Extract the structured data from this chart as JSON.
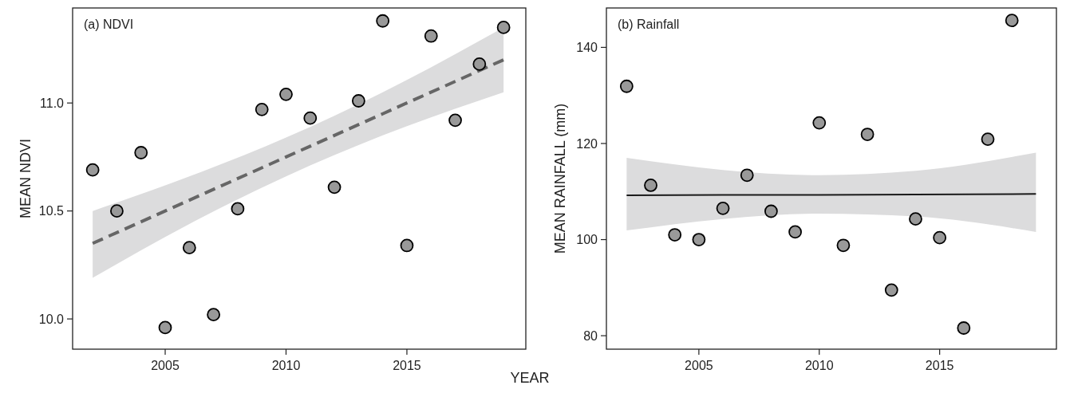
{
  "chart_data": [
    {
      "type": "scatter",
      "title": "(a) NDVI",
      "xlabel": "YEAR",
      "ylabel": "MEAN NDVI",
      "xlim": [
        2001.17,
        2019.92
      ],
      "xticks": [
        2005,
        2010,
        2015
      ],
      "ylim": [
        9.86,
        11.44
      ],
      "yticks": [
        {
          "value": 10.0,
          "label": "10.0"
        },
        10.5,
        {
          "value": 11.0,
          "label": "11.0"
        }
      ],
      "x": [
        2002,
        2003,
        2004,
        2005,
        2006,
        2007,
        2008,
        2009,
        2010,
        2011,
        2012,
        2013,
        2014,
        2015,
        2016,
        2017,
        2018,
        2019
      ],
      "series": [
        {
          "type": "line",
          "color": "#666666",
          "line_style": "dashed",
          "marker": "none",
          "x": [
            2002,
            2006,
            2010,
            2014,
            2019
          ],
          "values": [
            10.35,
            10.55,
            10.75,
            10.95,
            11.2
          ],
          "lower": [
            10.19,
            10.44,
            10.66,
            10.85,
            11.05
          ],
          "upper": [
            10.5,
            10.66,
            10.84,
            11.05,
            11.35
          ]
        },
        {
          "color": "#999999",
          "marker": "circle",
          "values": [
            10.69,
            10.5,
            10.77,
            9.96,
            10.33,
            10.02,
            10.51,
            10.97,
            11.04,
            10.93,
            10.61,
            11.01,
            11.38,
            10.34,
            11.31,
            10.92,
            11.18,
            11.35
          ]
        }
      ]
    },
    {
      "type": "scatter",
      "title": "(b) Rainfall",
      "ylabel": "MEAN RAINFALL (mm)",
      "xlim": [
        2001.16,
        2019.85
      ],
      "xticks": [
        2005,
        2010,
        2015
      ],
      "ylim": [
        77.2,
        148.2
      ],
      "yticks": [
        80,
        100,
        120,
        140
      ],
      "x": [
        2002,
        2003,
        2004,
        2005,
        2006,
        2007,
        2008,
        2009,
        2010,
        2011,
        2012,
        2013,
        2014,
        2015,
        2016,
        2017,
        2018
      ],
      "series": [
        {
          "type": "line",
          "color": "#1a1a1a",
          "line_style": "solid",
          "marker": "none",
          "x": [
            2002,
            2006,
            2010,
            2014,
            2019
          ],
          "values": [
            109.2,
            109.3,
            109.3,
            109.4,
            109.5
          ],
          "lower": [
            101.9,
            104.3,
            105.4,
            104.8,
            101.6
          ],
          "upper": [
            117.0,
            114.5,
            113.4,
            114.3,
            118.1
          ]
        },
        {
          "color": "#999999",
          "marker": "circle",
          "values": [
            131.9,
            111.3,
            101.0,
            100.0,
            106.5,
            113.4,
            105.9,
            101.6,
            124.3,
            98.8,
            121.9,
            89.5,
            104.3,
            100.4,
            81.6,
            120.9,
            145.6
          ]
        }
      ]
    }
  ]
}
